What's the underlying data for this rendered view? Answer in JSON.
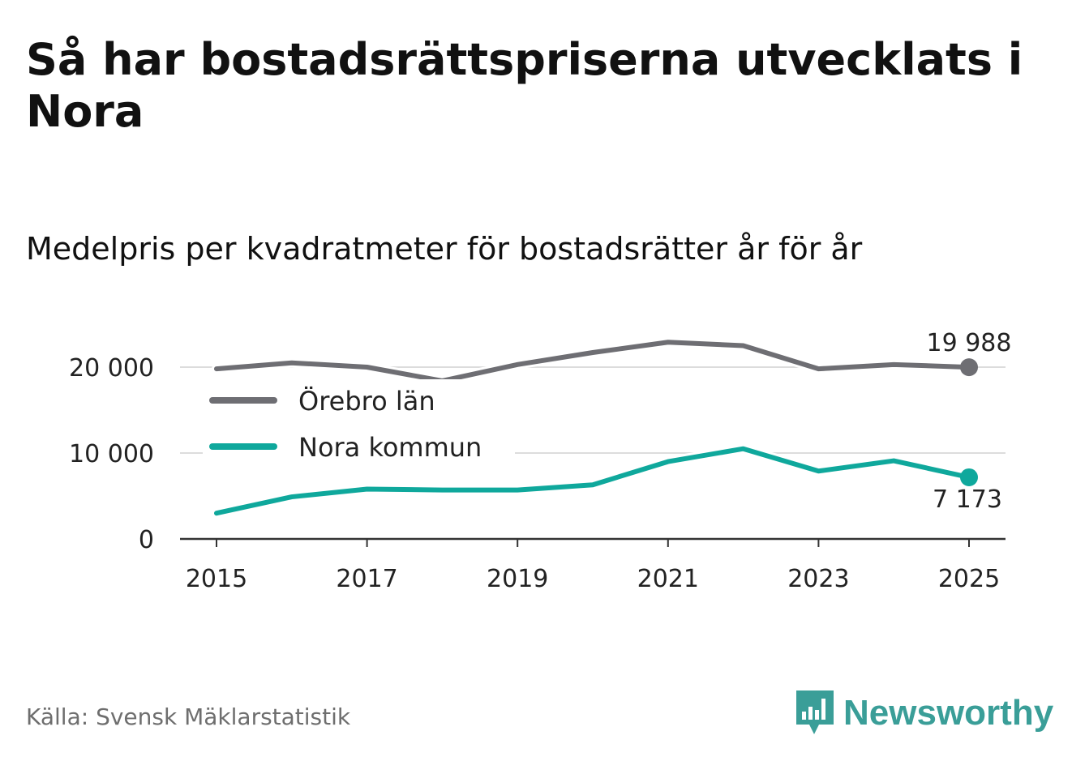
{
  "title": "Så har bostadsrättspriserna utvecklats i Nora",
  "subtitle": "Medelpris per kvadratmeter för bostadsrätter år för år",
  "source": "Källa: Svensk Mäklarstatistik",
  "brand": {
    "name": "Newsworthy",
    "icon": "newsworthy-logo-icon",
    "color": "#3a9e98"
  },
  "chart_data": {
    "type": "line",
    "title": "Så har bostadsrättspriserna utvecklats i Nora",
    "subtitle": "Medelpris per kvadratmeter för bostadsrätter år för år",
    "xlabel": "",
    "ylabel": "",
    "x": [
      2015,
      2016,
      2017,
      2018,
      2019,
      2020,
      2021,
      2022,
      2023,
      2024,
      2025
    ],
    "x_ticks": [
      "2015",
      "2017",
      "2019",
      "2021",
      "2023",
      "2025"
    ],
    "x_tick_values": [
      2015,
      2017,
      2019,
      2021,
      2023,
      2025
    ],
    "y_ticks": [
      "0",
      "10 000",
      "20 000"
    ],
    "y_tick_values": [
      0,
      10000,
      20000
    ],
    "ylim": [
      0,
      23500
    ],
    "grid": true,
    "legend_position": "top-left",
    "series": [
      {
        "name": "Örebro län",
        "color": "#6e6e73",
        "values": [
          19800,
          20500,
          20000,
          18400,
          20300,
          21700,
          22900,
          22500,
          19800,
          20300,
          19988
        ],
        "end_label": "19 988"
      },
      {
        "name": "Nora kommun",
        "color": "#0fa89c",
        "values": [
          3000,
          4900,
          5800,
          5700,
          5700,
          6300,
          9000,
          10500,
          7900,
          9100,
          7173
        ],
        "end_label": "7 173"
      }
    ]
  }
}
